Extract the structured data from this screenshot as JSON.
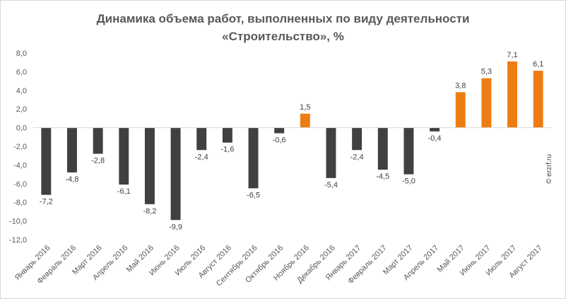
{
  "chart_data": {
    "type": "bar",
    "title_line1": "Динамика объема работ, выполненных по виду деятельности",
    "title_line2": "«Строительство», %",
    "categories": [
      "Январь 2016",
      "Февраль 2016",
      "Март 2016",
      "Апрель 2016",
      "Май 2016",
      "Июнь 2016",
      "Июль 2016",
      "Август 2016",
      "Сентябрь 2016",
      "Октябрь 2016",
      "Ноябрь 2016",
      "Декабрь 2016",
      "Январь 2017",
      "Февраль 2017",
      "Март 2017",
      "Апрель 2017",
      "Май 2017",
      "Июнь 2017",
      "Июль 2017",
      "Август 2017"
    ],
    "values": [
      -7.2,
      -4.8,
      -2.8,
      -6.1,
      -8.2,
      -9.9,
      -2.4,
      -1.6,
      -6.5,
      -0.6,
      1.5,
      -5.4,
      -2.4,
      -4.5,
      -5.0,
      -0.4,
      3.8,
      5.3,
      7.1,
      6.1
    ],
    "value_labels": [
      "-7,2",
      "-4,8",
      "-2,8",
      "-6,1",
      "-8,2",
      "-9,9",
      "-2,4",
      "-1,6",
      "-6,5",
      "-0,6",
      "1,5",
      "-5,4",
      "-2,4",
      "-4,5",
      "-5,0",
      "-0,4",
      "3,8",
      "5,3",
      "7,1",
      "6,1"
    ],
    "ylim": [
      -12,
      8
    ],
    "yticks": [
      8,
      6,
      4,
      2,
      0,
      -2,
      -4,
      -6,
      -8,
      -10,
      -12
    ],
    "ytick_labels": [
      "8,0",
      "6,0",
      "4,0",
      "2,0",
      "0,0",
      "-2,0",
      "-4,0",
      "-6,0",
      "-8,0",
      "-10,0",
      "-12,0"
    ],
    "colors": {
      "negative": "#404040",
      "positive": "#ed7d12",
      "axis": "#d9d9d9"
    },
    "grid": false,
    "legend": "none"
  },
  "watermark": "© erzrf.ru"
}
